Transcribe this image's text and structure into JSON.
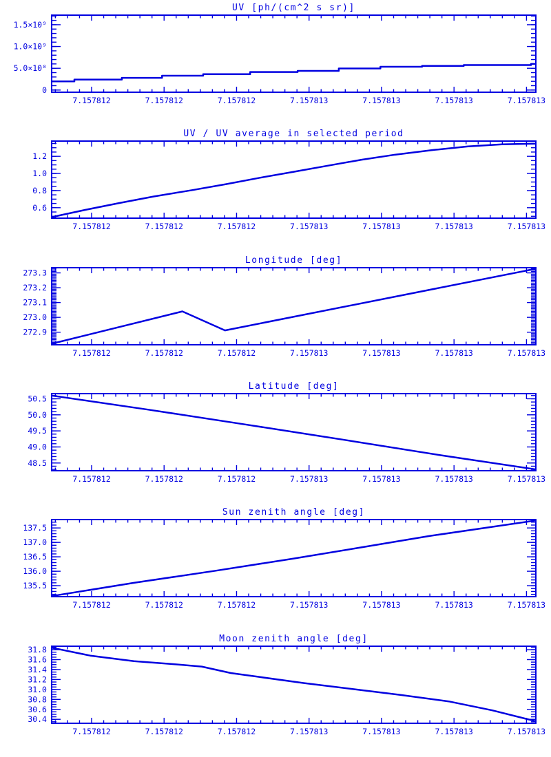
{
  "page": {
    "background": "#ffffff",
    "accent_color": "#0000e0"
  },
  "x_axis": {
    "tick_labels": [
      "7.157812",
      "7.157812",
      "7.157812",
      "7.157813",
      "7.157813",
      "7.157813",
      "7.157813"
    ],
    "first_tick_frac": 0.0825,
    "tick_spacing_frac": 0.1497,
    "minor_divisions": 6
  },
  "chart_data": [
    {
      "type": "line",
      "style": "steps",
      "title": "UV [ph/(cm^2 s sr)]",
      "ylabel": "",
      "ylim": [
        -50000000.0,
        1720000000.0
      ],
      "yticks": [
        {
          "value": 0,
          "label": "0"
        },
        {
          "value": 500000000.0,
          "label": "5.0×10⁸"
        },
        {
          "value": 1000000000.0,
          "label": "1.0×10⁹"
        },
        {
          "value": 1500000000.0,
          "label": "1.5×10⁹"
        }
      ],
      "minor_tick_step": 100000000.0,
      "points": [
        [
          0.0,
          200000000.0
        ],
        [
          0.047,
          200000000.0
        ],
        [
          0.047,
          240000000.0
        ],
        [
          0.145,
          240000000.0
        ],
        [
          0.145,
          280000000.0
        ],
        [
          0.228,
          280000000.0
        ],
        [
          0.228,
          330000000.0
        ],
        [
          0.313,
          330000000.0
        ],
        [
          0.313,
          365000000.0
        ],
        [
          0.41,
          365000000.0
        ],
        [
          0.41,
          415000000.0
        ],
        [
          0.508,
          415000000.0
        ],
        [
          0.508,
          440000000.0
        ],
        [
          0.593,
          440000000.0
        ],
        [
          0.593,
          495000000.0
        ],
        [
          0.679,
          495000000.0
        ],
        [
          0.679,
          535000000.0
        ],
        [
          0.765,
          535000000.0
        ],
        [
          0.765,
          555000000.0
        ],
        [
          0.851,
          555000000.0
        ],
        [
          0.851,
          575000000.0
        ],
        [
          0.99,
          575000000.0
        ],
        [
          0.99,
          600000000.0
        ],
        [
          1.0,
          600000000.0
        ]
      ]
    },
    {
      "type": "line",
      "style": "curve",
      "title": "UV / UV average in selected period",
      "ylabel": "",
      "ylim": [
        0.478,
        1.378
      ],
      "yticks": [
        {
          "value": 0.6,
          "label": "0.6"
        },
        {
          "value": 0.8,
          "label": "0.8"
        },
        {
          "value": 1.0,
          "label": "1.0"
        },
        {
          "value": 1.2,
          "label": "1.2"
        }
      ],
      "minor_tick_step": 0.05,
      "points": [
        [
          0.0,
          0.49
        ],
        [
          0.07,
          0.575
        ],
        [
          0.14,
          0.655
        ],
        [
          0.21,
          0.73
        ],
        [
          0.29,
          0.805
        ],
        [
          0.36,
          0.875
        ],
        [
          0.43,
          0.95
        ],
        [
          0.5,
          1.02
        ],
        [
          0.57,
          1.09
        ],
        [
          0.64,
          1.16
        ],
        [
          0.71,
          1.22
        ],
        [
          0.79,
          1.275
        ],
        [
          0.86,
          1.315
        ],
        [
          0.93,
          1.34
        ],
        [
          1.0,
          1.348
        ]
      ]
    },
    {
      "type": "line",
      "style": "curve",
      "title": "Longitude [deg]",
      "ylabel": "",
      "ylim": [
        272.815,
        273.335
      ],
      "yticks": [
        {
          "value": 272.9,
          "label": "272.9"
        },
        {
          "value": 273.0,
          "label": "273.0"
        },
        {
          "value": 273.1,
          "label": "273.1"
        },
        {
          "value": 273.2,
          "label": "273.2"
        },
        {
          "value": 273.3,
          "label": "273.3"
        }
      ],
      "minor_tick_step": 0.01,
      "points": [
        [
          0.0,
          272.822
        ],
        [
          0.27,
          273.04
        ],
        [
          0.358,
          272.912
        ],
        [
          1.0,
          273.328
        ]
      ]
    },
    {
      "type": "line",
      "style": "curve",
      "title": "Latitude [deg]",
      "ylabel": "",
      "ylim": [
        48.26,
        50.66
      ],
      "yticks": [
        {
          "value": 48.5,
          "label": "48.5"
        },
        {
          "value": 49.0,
          "label": "49.0"
        },
        {
          "value": 49.5,
          "label": "49.5"
        },
        {
          "value": 50.0,
          "label": "50.0"
        },
        {
          "value": 50.5,
          "label": "50.5"
        }
      ],
      "minor_tick_step": 0.1,
      "points": [
        [
          0.0,
          50.6
        ],
        [
          0.2,
          50.16
        ],
        [
          0.4,
          49.7
        ],
        [
          0.6,
          49.23
        ],
        [
          0.8,
          48.75
        ],
        [
          1.0,
          48.3
        ]
      ]
    },
    {
      "type": "line",
      "style": "curve",
      "title": "Sun zenith angle [deg]",
      "ylabel": "",
      "ylim": [
        135.12,
        137.79
      ],
      "yticks": [
        {
          "value": 135.5,
          "label": "135.5"
        },
        {
          "value": 136.0,
          "label": "136.0"
        },
        {
          "value": 136.5,
          "label": "136.5"
        },
        {
          "value": 137.0,
          "label": "137.0"
        },
        {
          "value": 137.5,
          "label": "137.5"
        }
      ],
      "minor_tick_step": 0.1,
      "points": [
        [
          0.0,
          135.14
        ],
        [
          0.17,
          135.6
        ],
        [
          0.34,
          136.02
        ],
        [
          0.5,
          136.44
        ],
        [
          0.63,
          136.8
        ],
        [
          0.78,
          137.22
        ],
        [
          1.0,
          137.76
        ]
      ]
    },
    {
      "type": "line",
      "style": "curve",
      "title": "Moon zenith angle [deg]",
      "ylabel": "",
      "ylim": [
        30.32,
        31.87
      ],
      "yticks": [
        {
          "value": 30.4,
          "label": "30.4"
        },
        {
          "value": 30.6,
          "label": "30.6"
        },
        {
          "value": 30.8,
          "label": "30.8"
        },
        {
          "value": 31.0,
          "label": "31.0"
        },
        {
          "value": 31.2,
          "label": "31.2"
        },
        {
          "value": 31.4,
          "label": "31.4"
        },
        {
          "value": 31.6,
          "label": "31.6"
        },
        {
          "value": 31.8,
          "label": "31.8"
        }
      ],
      "minor_tick_step": 0.05,
      "points": [
        [
          0.0,
          31.84
        ],
        [
          0.08,
          31.68
        ],
        [
          0.17,
          31.57
        ],
        [
          0.25,
          31.51
        ],
        [
          0.31,
          31.46
        ],
        [
          0.37,
          31.33
        ],
        [
          0.43,
          31.25
        ],
        [
          0.52,
          31.13
        ],
        [
          0.62,
          31.01
        ],
        [
          0.72,
          30.89
        ],
        [
          0.82,
          30.76
        ],
        [
          0.91,
          30.58
        ],
        [
          1.0,
          30.36
        ]
      ]
    }
  ]
}
